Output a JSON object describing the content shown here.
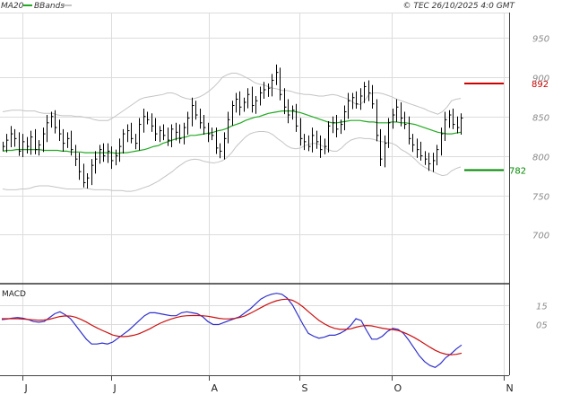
{
  "header": {
    "legend_ma": "MA20",
    "legend_bands": "BBands",
    "copyright": "© TEC 26/10/2025 4:0 GMT"
  },
  "colors": {
    "price": "#000000",
    "ma20": "#22aa22",
    "bands": "#c4c4c4",
    "grid": "#dcdcdc",
    "resistance": "#cc0000",
    "support": "#008800",
    "macd_line": "#3030cc",
    "macd_signal": "#cc1010"
  },
  "chart_data": [
    {
      "type": "ohlc",
      "panel": "price",
      "y_ticks": [
        "950",
        "900",
        "850",
        "800",
        "750",
        "700"
      ],
      "ylim": [
        640,
        982
      ],
      "x_ticks": [
        "J",
        "J",
        "A",
        "S",
        "O",
        "N"
      ],
      "grid": true,
      "resistance": {
        "value": 892,
        "label": "892"
      },
      "support": {
        "value": 782,
        "label": "782"
      },
      "close": [
        812,
        820,
        828,
        822,
        806,
        818,
        812,
        824,
        808,
        814,
        828,
        842,
        850,
        836,
        828,
        816,
        822,
        808,
        796,
        780,
        766,
        772,
        788,
        796,
        808,
        800,
        806,
        794,
        800,
        812,
        828,
        832,
        822,
        816,
        840,
        850,
        846,
        838,
        828,
        832,
        826,
        820,
        834,
        830,
        822,
        836,
        848,
        864,
        852,
        842,
        836,
        828,
        826,
        810,
        806,
        822,
        846,
        864,
        872,
        862,
        868,
        878,
        864,
        870,
        880,
        884,
        886,
        896,
        906,
        878,
        862,
        852,
        858,
        838,
        822,
        818,
        812,
        826,
        818,
        808,
        812,
        838,
        842,
        834,
        840,
        856,
        870,
        874,
        866,
        876,
        888,
        880,
        866,
        826,
        796,
        816,
        842,
        852,
        862,
        848,
        840,
        822,
        814,
        808,
        800,
        796,
        790,
        794,
        808,
        828,
        846,
        852,
        840,
        836,
        848
      ],
      "ma20": [
        806,
        807,
        807,
        808,
        808,
        808,
        808,
        808,
        808,
        807,
        807,
        807,
        807,
        806,
        806,
        805,
        805,
        805,
        804,
        804,
        804,
        804,
        804,
        804,
        804,
        803,
        804,
        804,
        805,
        806,
        807,
        808,
        810,
        812,
        813,
        816,
        818,
        820,
        822,
        823,
        824,
        826,
        826,
        827,
        828,
        829,
        830,
        832,
        833,
        835,
        838,
        840,
        842,
        845,
        847,
        849,
        850,
        852,
        854,
        855,
        856,
        857,
        857,
        857,
        856,
        855,
        853,
        851,
        849,
        847,
        845,
        843,
        842,
        842,
        843,
        844,
        845,
        845,
        845,
        844,
        843,
        843,
        842,
        842,
        842,
        843,
        843,
        842,
        842,
        841,
        840,
        838,
        836,
        834,
        832,
        830,
        829,
        828,
        828,
        829,
        830
      ],
      "bb_upper": [
        856,
        857,
        858,
        858,
        858,
        857,
        857,
        857,
        855,
        854,
        854,
        854,
        852,
        851,
        851,
        851,
        850,
        850,
        849,
        848,
        846,
        845,
        845,
        845,
        848,
        852,
        856,
        860,
        864,
        868,
        872,
        874,
        875,
        876,
        877,
        878,
        880,
        880,
        878,
        875,
        873,
        872,
        873,
        875,
        878,
        882,
        887,
        893,
        900,
        903,
        905,
        905,
        903,
        900,
        897,
        893,
        891,
        890,
        888,
        886,
        885,
        883,
        883,
        882,
        880,
        879,
        878,
        878,
        877,
        876,
        876,
        877,
        878,
        877,
        875,
        873,
        870,
        866,
        865,
        870,
        878,
        880,
        880,
        879,
        877,
        875,
        872,
        870,
        868,
        866,
        864,
        862,
        860,
        857,
        855,
        853,
        856,
        862,
        870,
        872,
        873
      ],
      "bb_lower": [
        758,
        757,
        757,
        757,
        758,
        758,
        759,
        761,
        762,
        762,
        762,
        761,
        760,
        759,
        758,
        758,
        758,
        758,
        759,
        758,
        757,
        757,
        757,
        757,
        756,
        756,
        756,
        755,
        755,
        756,
        758,
        760,
        762,
        765,
        768,
        772,
        776,
        780,
        785,
        789,
        793,
        795,
        796,
        795,
        793,
        792,
        791,
        792,
        794,
        798,
        804,
        812,
        818,
        824,
        828,
        830,
        831,
        831,
        830,
        827,
        822,
        818,
        813,
        810,
        809,
        810,
        813,
        815,
        816,
        815,
        812,
        808,
        806,
        806,
        810,
        816,
        820,
        822,
        823,
        822,
        822,
        821,
        819,
        818,
        817,
        816,
        813,
        808,
        805,
        801,
        796,
        790,
        786,
        783,
        780,
        777,
        775,
        776,
        781,
        784,
        786
      ]
    },
    {
      "type": "line",
      "panel": "MACD",
      "title": "MACD",
      "y_ticks": [
        "15",
        "05"
      ],
      "ylim": [
        -21,
        25
      ],
      "series": [
        {
          "values": [
            7.5,
            7.8,
            8.3,
            8.6,
            8.2,
            7.5,
            6.5,
            6.2,
            6.5,
            8.5,
            10.5,
            11.5,
            10.0,
            8.0,
            4.5,
            1.0,
            -2.5,
            -5.0,
            -5.0,
            -4.5,
            -5.0,
            -4.0,
            -2.0,
            0.0,
            2.0,
            4.5,
            7.0,
            9.5,
            11.0,
            11.0,
            10.5,
            10.0,
            9.5,
            9.5,
            11.0,
            11.5,
            11.0,
            10.5,
            9.0,
            6.5,
            5.0,
            5.0,
            6.0,
            7.0,
            8.0,
            9.0,
            11.0,
            13.0,
            15.5,
            18.0,
            19.5,
            20.5,
            21.0,
            20.5,
            18.5,
            15.0,
            10.0,
            5.0,
            0.5,
            -1.0,
            -2.0,
            -1.5,
            -0.5,
            -0.5,
            0.5,
            2.0,
            4.5,
            8.0,
            7.0,
            2.0,
            -2.5,
            -2.5,
            -1.0,
            1.5,
            3.0,
            2.5,
            0.5,
            -3.0,
            -7.0,
            -11.0,
            -14.0,
            -16.0,
            -17.0,
            -15.0,
            -12.0,
            -10.0,
            -7.5,
            -5.5
          ]
        },
        {
          "values": [
            8.0,
            8.0,
            8.0,
            8.0,
            7.8,
            7.6,
            7.4,
            7.2,
            7.3,
            7.7,
            8.4,
            9.1,
            9.4,
            9.3,
            8.7,
            7.6,
            6.3,
            4.7,
            3.3,
            2.0,
            0.8,
            -0.4,
            -1.0,
            -1.2,
            -1.0,
            -0.5,
            0.3,
            1.5,
            2.8,
            4.3,
            5.7,
            6.8,
            7.8,
            8.6,
            9.2,
            9.5,
            9.6,
            9.6,
            9.5,
            9.2,
            8.7,
            8.2,
            7.9,
            7.9,
            8.1,
            8.6,
            9.4,
            10.7,
            12.1,
            13.6,
            15.0,
            16.2,
            17.2,
            17.8,
            18.0,
            17.4,
            16.0,
            14.0,
            11.6,
            9.3,
            7.1,
            5.4,
            4.0,
            3.0,
            2.5,
            2.5,
            2.8,
            3.6,
            4.2,
            4.5,
            4.3,
            3.7,
            3.1,
            2.7,
            2.4,
            1.9,
            1.0,
            -0.2,
            -1.6,
            -3.2,
            -4.9,
            -6.6,
            -8.2,
            -9.4,
            -10.2,
            -10.5,
            -10.3,
            -9.7
          ]
        }
      ]
    }
  ]
}
